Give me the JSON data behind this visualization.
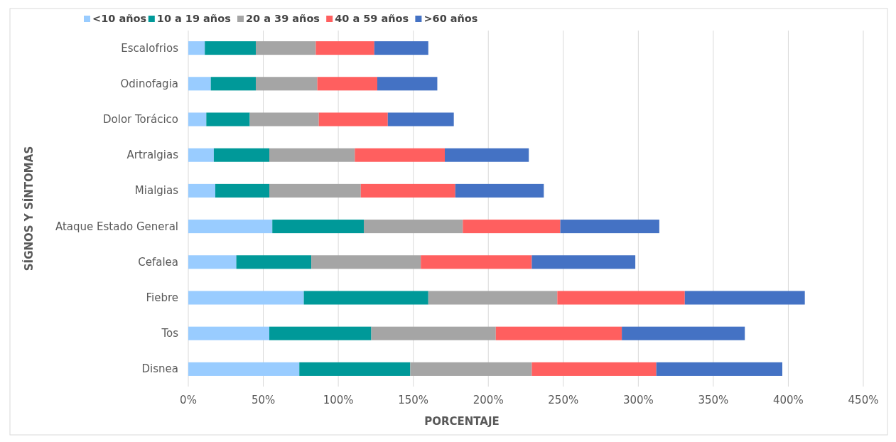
{
  "chart_data": {
    "type": "bar",
    "orientation": "horizontal",
    "stacked": true,
    "xlabel": "PORCENTAJE",
    "ylabel": "SÍGNOS Y SÍNTOMAS",
    "categories": [
      "Escalofrios",
      "Odinofagia",
      "Dolor Torácico",
      "Artralgias",
      "Mialgias",
      "Ataque Estado General",
      "Cefalea",
      "Fiebre",
      "Tos",
      "Disnea"
    ],
    "series": [
      {
        "name": "<10 años",
        "color": "#99ccff",
        "values": [
          11,
          15,
          12,
          17,
          18,
          56,
          32,
          77,
          54,
          74
        ]
      },
      {
        "name": "10 a 19 años",
        "color": "#009999",
        "values": [
          34,
          30,
          29,
          37,
          36,
          61,
          50,
          83,
          68,
          74
        ]
      },
      {
        "name": "20 a 39 años",
        "color": "#a5a5a5",
        "values": [
          40,
          41,
          46,
          57,
          61,
          66,
          73,
          86,
          83,
          81
        ]
      },
      {
        "name": "40 a 59 años",
        "color": "#ff5f5f",
        "values": [
          39,
          40,
          46,
          60,
          63,
          65,
          74,
          85,
          84,
          83
        ]
      },
      {
        "name": ">60 años",
        "color": "#4472c4",
        "values": [
          36,
          40,
          44,
          56,
          59,
          66,
          69,
          80,
          82,
          84
        ]
      }
    ],
    "xlim": [
      0,
      450
    ],
    "xticks": [
      {
        "value": 0,
        "label": "0%"
      },
      {
        "value": 50,
        "label": "50%"
      },
      {
        "value": 100,
        "label": "100%"
      },
      {
        "value": 150,
        "label": "150%"
      },
      {
        "value": 200,
        "label": "200%"
      },
      {
        "value": 250,
        "label": "250%"
      },
      {
        "value": 300,
        "label": "300%"
      },
      {
        "value": 350,
        "label": "350%"
      },
      {
        "value": 400,
        "label": "400%"
      },
      {
        "value": 450,
        "label": "450%"
      }
    ],
    "grid": "x",
    "legend": "top left"
  }
}
